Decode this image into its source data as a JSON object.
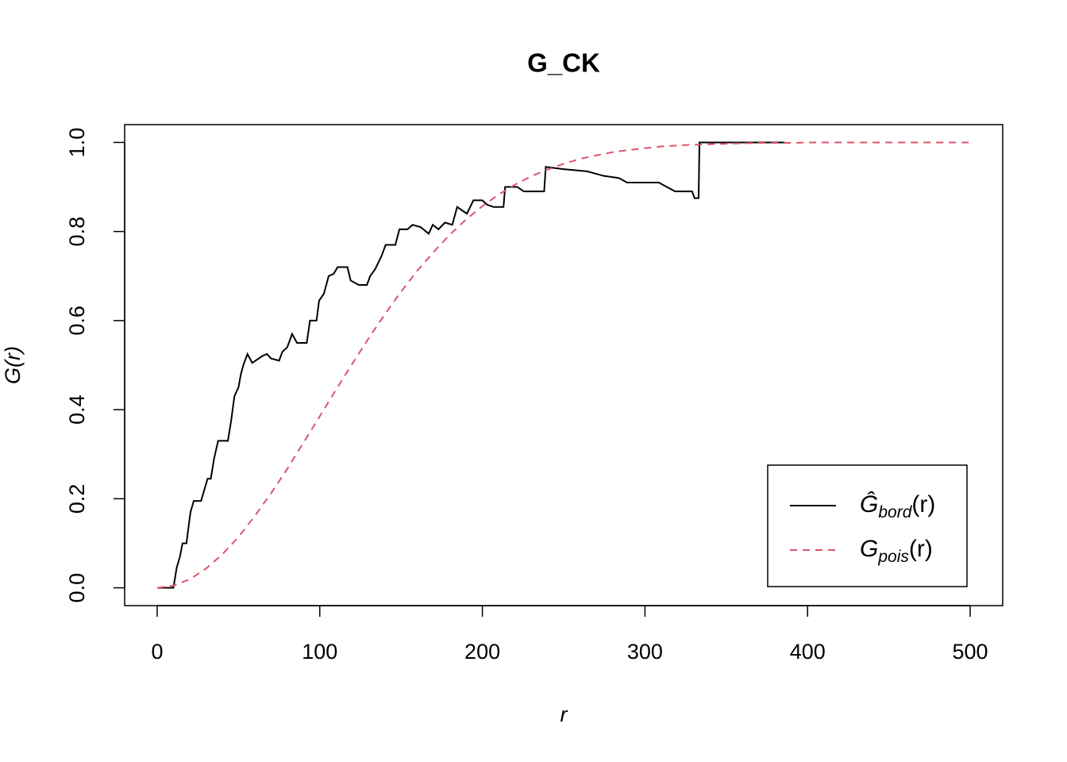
{
  "chart_data": {
    "type": "line",
    "title": "G_CK",
    "xlabel": "r",
    "ylabel": "G(r)",
    "xlim": [
      -20,
      520
    ],
    "ylim": [
      -0.04,
      1.04
    ],
    "xticks": [
      0,
      100,
      200,
      300,
      400,
      500
    ],
    "yticks": [
      {
        "value": 0,
        "label": "0.0"
      },
      {
        "value": 0.2,
        "label": "0.2"
      },
      {
        "value": 0.4,
        "label": "0.4"
      },
      {
        "value": 0.6,
        "label": "0.6"
      },
      {
        "value": 0.8,
        "label": "0.8"
      },
      {
        "value": 1,
        "label": "1.0"
      }
    ],
    "legend": "bottomright",
    "series": [
      {
        "name": "Ĝbord(r)",
        "color": "#000000",
        "dashed": false,
        "x": [
          0,
          10,
          12,
          14,
          15.6,
          18,
          20.5,
          22.5,
          27,
          29,
          31,
          33,
          35,
          37.5,
          43.5,
          45.5,
          47.5,
          50,
          51.5,
          53,
          55.5,
          58.5,
          64.5,
          67.5,
          70,
          75,
          77,
          80,
          83,
          86,
          92,
          94,
          98,
          99.6,
          102.5,
          105.5,
          108.5,
          111,
          117,
          119,
          124,
          129,
          131,
          134,
          138,
          140.5,
          146.5,
          149,
          154,
          157,
          162,
          167,
          169.5,
          173,
          177,
          181.5,
          184.5,
          190.5,
          194.5,
          200,
          203,
          207,
          213,
          214,
          221.5,
          225.5,
          238,
          239,
          250,
          264.5,
          274.5,
          284,
          289,
          308.5,
          318.5,
          329,
          330.5,
          333,
          333.5,
          386
        ],
        "values": [
          0,
          0,
          0.045,
          0.07,
          0.1,
          0.1,
          0.17,
          0.195,
          0.195,
          0.22,
          0.245,
          0.245,
          0.29,
          0.33,
          0.33,
          0.375,
          0.43,
          0.45,
          0.48,
          0.5,
          0.525,
          0.505,
          0.52,
          0.525,
          0.515,
          0.51,
          0.53,
          0.54,
          0.57,
          0.55,
          0.55,
          0.6,
          0.6,
          0.645,
          0.66,
          0.7,
          0.705,
          0.72,
          0.72,
          0.69,
          0.68,
          0.68,
          0.7,
          0.715,
          0.745,
          0.77,
          0.77,
          0.805,
          0.805,
          0.815,
          0.81,
          0.795,
          0.815,
          0.805,
          0.82,
          0.815,
          0.855,
          0.84,
          0.87,
          0.87,
          0.86,
          0.855,
          0.855,
          0.9,
          0.9,
          0.89,
          0.89,
          0.945,
          0.94,
          0.935,
          0.925,
          0.92,
          0.91,
          0.91,
          0.89,
          0.89,
          0.875,
          0.875,
          1,
          1
        ]
      },
      {
        "name": "Gpois(r)",
        "color": "#df536b",
        "dashed": true,
        "x": [
          0,
          10,
          20,
          30,
          40,
          50,
          60,
          70,
          80,
          90,
          100,
          110,
          120,
          130,
          140,
          150,
          160,
          170,
          180,
          190,
          200,
          210,
          220,
          230,
          240,
          250,
          260,
          270,
          280,
          290,
          300,
          310,
          320,
          330,
          340,
          350,
          360,
          370,
          380,
          390,
          400,
          410,
          420,
          430,
          440,
          450,
          460,
          470,
          480,
          490,
          500
        ],
        "values": [
          0,
          0.005,
          0.019,
          0.043,
          0.075,
          0.114,
          0.161,
          0.212,
          0.267,
          0.326,
          0.385,
          0.445,
          0.503,
          0.56,
          0.614,
          0.665,
          0.712,
          0.754,
          0.793,
          0.827,
          0.857,
          0.883,
          0.905,
          0.924,
          0.939,
          0.952,
          0.963,
          0.971,
          0.978,
          0.983,
          0.987,
          0.991,
          0.993,
          0.995,
          0.996,
          0.997,
          0.998,
          0.999,
          0.999,
          0.999,
          1,
          1,
          1,
          1,
          1,
          1,
          1,
          1,
          1,
          1,
          1
        ]
      }
    ]
  }
}
